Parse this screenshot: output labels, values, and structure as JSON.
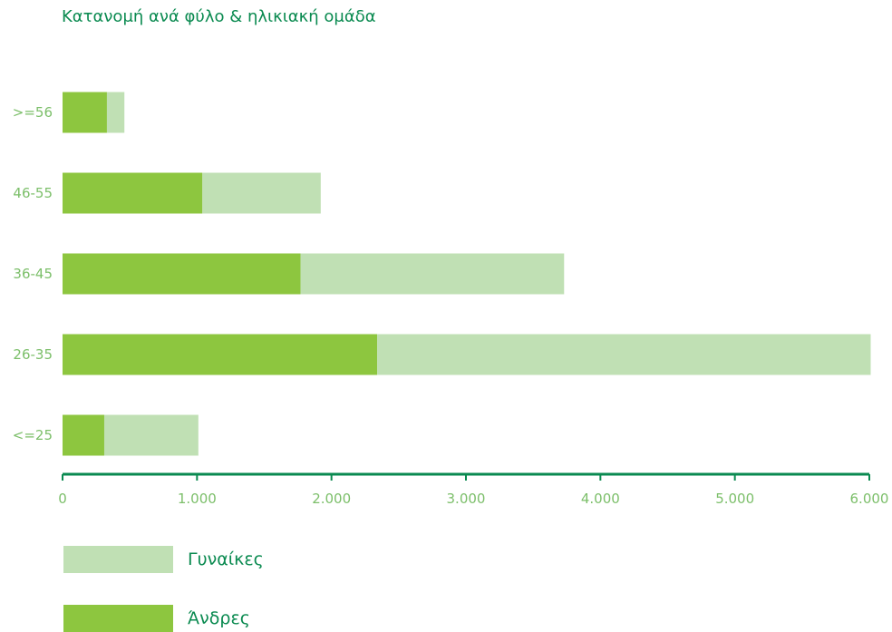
{
  "chart_data": {
    "type": "bar",
    "orientation": "horizontal",
    "stacked": true,
    "title": "Κατανομή ανά φύλο & ηλικιακή ομάδα",
    "categories": [
      ">=56",
      "46-55",
      "36-45",
      "26-35",
      "<=25"
    ],
    "series": [
      {
        "name": "Άνδρες",
        "values": [
          330,
          1040,
          1770,
          2340,
          310
        ],
        "color": "#8dc63f"
      },
      {
        "name": "Γυναίκες",
        "values": [
          130,
          880,
          1960,
          3670,
          700
        ],
        "color": "#c0e0b4"
      }
    ],
    "xlim": [
      0,
      6000
    ],
    "xticks": [
      0,
      1000,
      2000,
      3000,
      4000,
      5000,
      6000
    ],
    "xtick_labels": [
      "0",
      "1.000",
      "2.000",
      "3.000",
      "4.000",
      "5.000",
      "6.000"
    ],
    "grid": false,
    "legend_position": "bottom-left",
    "axis_color": "#0a8a50",
    "label_color": "#7cbf6a"
  },
  "legend": [
    {
      "label": "Γυναίκες",
      "color": "#c0e0b4"
    },
    {
      "label": "Άνδρες",
      "color": "#8dc63f"
    }
  ]
}
